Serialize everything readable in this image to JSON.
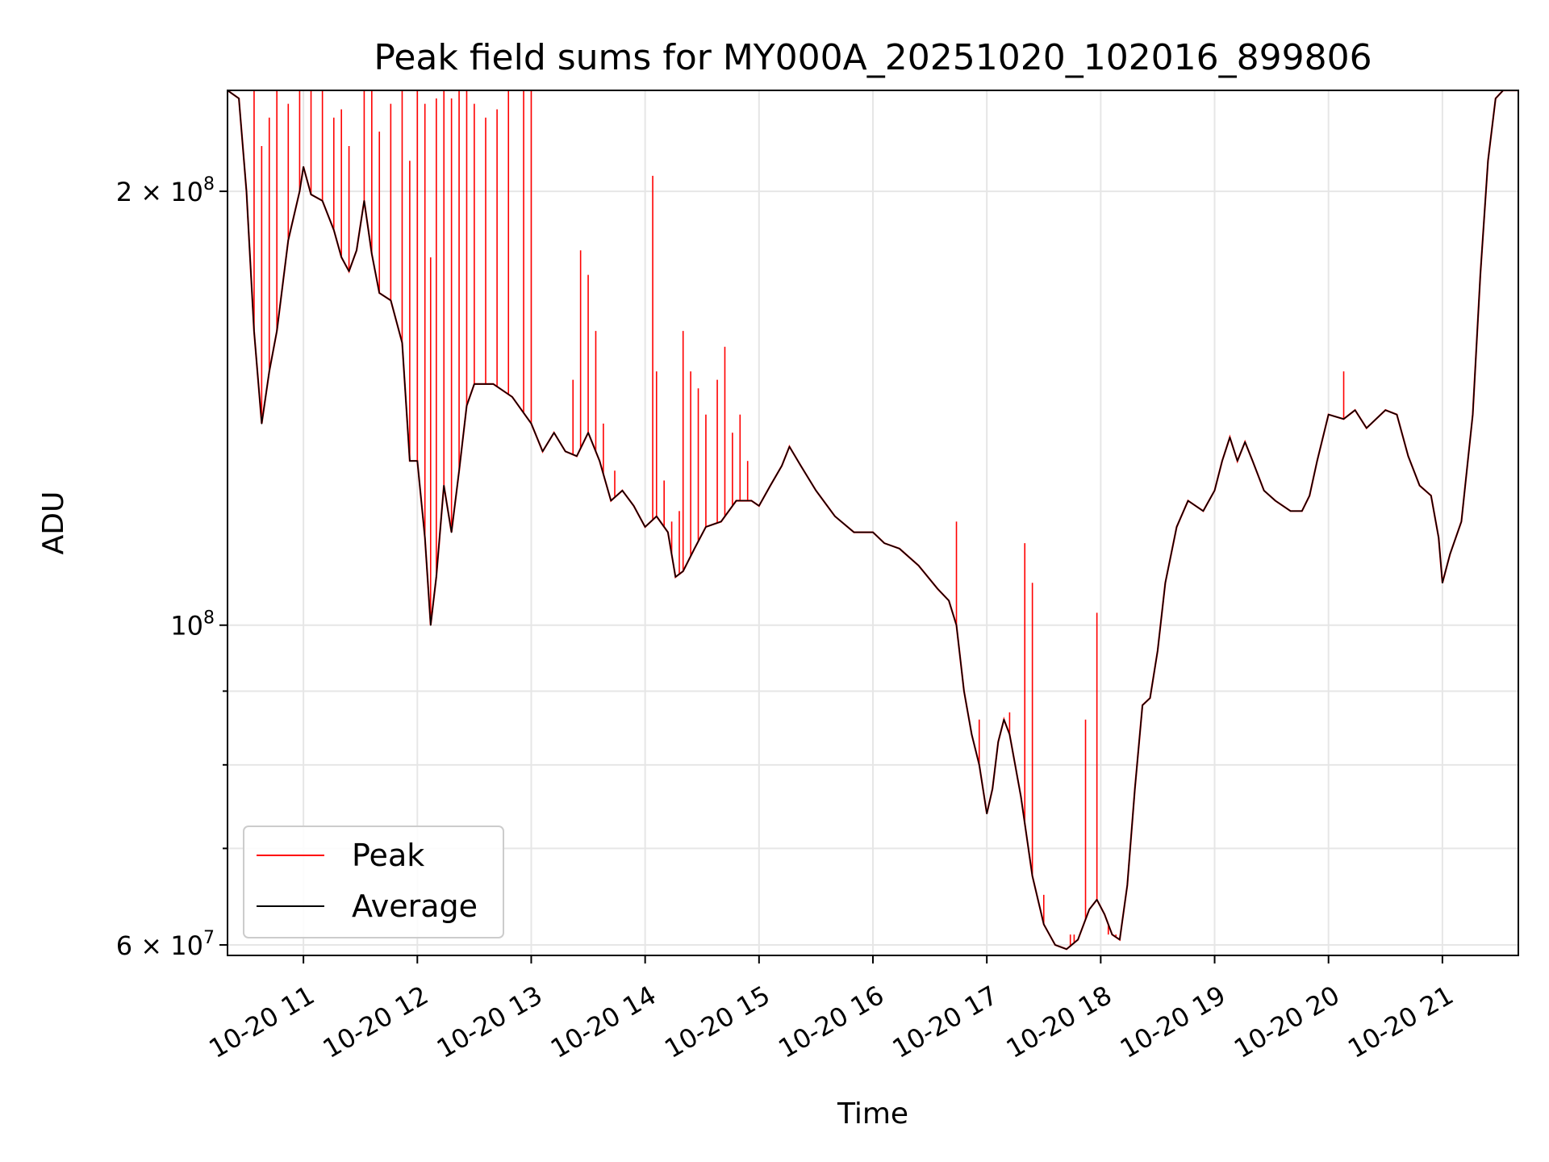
{
  "chart_data": {
    "type": "line",
    "title": "Peak field sums for MY000A_20251020_102016_899806",
    "xlabel": "Time",
    "ylabel": "ADU",
    "y_scale": "log",
    "ylim": [
      59000000,
      235000000
    ],
    "xlim": [
      "2025-10-20 10:20",
      "2025-10-20 21:40"
    ],
    "grid": true,
    "legend_position": "lower-left",
    "x_ticks": [
      {
        "t": "2025-10-20 11:00",
        "label": "10-20 11"
      },
      {
        "t": "2025-10-20 12:00",
        "label": "10-20 12"
      },
      {
        "t": "2025-10-20 13:00",
        "label": "10-20 13"
      },
      {
        "t": "2025-10-20 14:00",
        "label": "10-20 14"
      },
      {
        "t": "2025-10-20 15:00",
        "label": "10-20 15"
      },
      {
        "t": "2025-10-20 16:00",
        "label": "10-20 16"
      },
      {
        "t": "2025-10-20 17:00",
        "label": "10-20 17"
      },
      {
        "t": "2025-10-20 18:00",
        "label": "10-20 18"
      },
      {
        "t": "2025-10-20 19:00",
        "label": "10-20 19"
      },
      {
        "t": "2025-10-20 20:00",
        "label": "10-20 20"
      },
      {
        "t": "2025-10-20 21:00",
        "label": "10-20 21"
      }
    ],
    "y_ticks": [
      {
        "value": 60000000,
        "base": "6 × 10",
        "exp": "7"
      },
      {
        "value": 100000000,
        "base": "10",
        "exp": "8"
      },
      {
        "value": 200000000,
        "base": "2 × 10",
        "exp": "8"
      }
    ],
    "y_minor_ticks": [
      70000000,
      80000000,
      90000000
    ],
    "series": [
      {
        "name": "Average",
        "color": "#000000",
        "points": [
          [
            "2025-10-20 10:20",
            235000000
          ],
          [
            "2025-10-20 10:26",
            232000000
          ],
          [
            "2025-10-20 10:30",
            200000000
          ],
          [
            "2025-10-20 10:34",
            160000000
          ],
          [
            "2025-10-20 10:38",
            138000000
          ],
          [
            "2025-10-20 10:42",
            150000000
          ],
          [
            "2025-10-20 10:46",
            160000000
          ],
          [
            "2025-10-20 10:52",
            185000000
          ],
          [
            "2025-10-20 10:58",
            200000000
          ],
          [
            "2025-10-20 11:00",
            208000000
          ],
          [
            "2025-10-20 11:04",
            199000000
          ],
          [
            "2025-10-20 11:10",
            197000000
          ],
          [
            "2025-10-20 11:16",
            188000000
          ],
          [
            "2025-10-20 11:20",
            180000000
          ],
          [
            "2025-10-20 11:24",
            176000000
          ],
          [
            "2025-10-20 11:28",
            182000000
          ],
          [
            "2025-10-20 11:32",
            197000000
          ],
          [
            "2025-10-20 11:36",
            181000000
          ],
          [
            "2025-10-20 11:40",
            170000000
          ],
          [
            "2025-10-20 11:46",
            168000000
          ],
          [
            "2025-10-20 11:52",
            157000000
          ],
          [
            "2025-10-20 11:56",
            130000000
          ],
          [
            "2025-10-20 12:00",
            130000000
          ],
          [
            "2025-10-20 12:04",
            115000000
          ],
          [
            "2025-10-20 12:07",
            100000000
          ],
          [
            "2025-10-20 12:10",
            108000000
          ],
          [
            "2025-10-20 12:14",
            125000000
          ],
          [
            "2025-10-20 12:18",
            116000000
          ],
          [
            "2025-10-20 12:22",
            128000000
          ],
          [
            "2025-10-20 12:26",
            142000000
          ],
          [
            "2025-10-20 12:30",
            147000000
          ],
          [
            "2025-10-20 12:40",
            147000000
          ],
          [
            "2025-10-20 12:50",
            144000000
          ],
          [
            "2025-10-20 13:00",
            138000000
          ],
          [
            "2025-10-20 13:06",
            132000000
          ],
          [
            "2025-10-20 13:12",
            136000000
          ],
          [
            "2025-10-20 13:18",
            132000000
          ],
          [
            "2025-10-20 13:24",
            131000000
          ],
          [
            "2025-10-20 13:30",
            136000000
          ],
          [
            "2025-10-20 13:36",
            130000000
          ],
          [
            "2025-10-20 13:42",
            122000000
          ],
          [
            "2025-10-20 13:48",
            124000000
          ],
          [
            "2025-10-20 13:54",
            121000000
          ],
          [
            "2025-10-20 14:00",
            117000000
          ],
          [
            "2025-10-20 14:06",
            119000000
          ],
          [
            "2025-10-20 14:12",
            116000000
          ],
          [
            "2025-10-20 14:16",
            108000000
          ],
          [
            "2025-10-20 14:20",
            109000000
          ],
          [
            "2025-10-20 14:26",
            113000000
          ],
          [
            "2025-10-20 14:32",
            117000000
          ],
          [
            "2025-10-20 14:40",
            118000000
          ],
          [
            "2025-10-20 14:48",
            122000000
          ],
          [
            "2025-10-20 14:56",
            122000000
          ],
          [
            "2025-10-20 15:00",
            121000000
          ],
          [
            "2025-10-20 15:06",
            125000000
          ],
          [
            "2025-10-20 15:12",
            129000000
          ],
          [
            "2025-10-20 15:16",
            133000000
          ],
          [
            "2025-10-20 15:22",
            129000000
          ],
          [
            "2025-10-20 15:30",
            124000000
          ],
          [
            "2025-10-20 15:40",
            119000000
          ],
          [
            "2025-10-20 15:50",
            116000000
          ],
          [
            "2025-10-20 16:00",
            116000000
          ],
          [
            "2025-10-20 16:06",
            114000000
          ],
          [
            "2025-10-20 16:14",
            113000000
          ],
          [
            "2025-10-20 16:24",
            110000000
          ],
          [
            "2025-10-20 16:34",
            106000000
          ],
          [
            "2025-10-20 16:40",
            104000000
          ],
          [
            "2025-10-20 16:44",
            100000000
          ],
          [
            "2025-10-20 16:48",
            90000000
          ],
          [
            "2025-10-20 16:52",
            84000000
          ],
          [
            "2025-10-20 16:56",
            80000000
          ],
          [
            "2025-10-20 17:00",
            74000000
          ],
          [
            "2025-10-20 17:03",
            77000000
          ],
          [
            "2025-10-20 17:06",
            83000000
          ],
          [
            "2025-10-20 17:09",
            86000000
          ],
          [
            "2025-10-20 17:12",
            84000000
          ],
          [
            "2025-10-20 17:18",
            76000000
          ],
          [
            "2025-10-20 17:24",
            67000000
          ],
          [
            "2025-10-20 17:30",
            62000000
          ],
          [
            "2025-10-20 17:36",
            60000000
          ],
          [
            "2025-10-20 17:42",
            59600000
          ],
          [
            "2025-10-20 17:48",
            60500000
          ],
          [
            "2025-10-20 17:54",
            63500000
          ],
          [
            "2025-10-20 17:58",
            64500000
          ],
          [
            "2025-10-20 18:02",
            63000000
          ],
          [
            "2025-10-20 18:06",
            61000000
          ],
          [
            "2025-10-20 18:10",
            60500000
          ],
          [
            "2025-10-20 18:14",
            66000000
          ],
          [
            "2025-10-20 18:18",
            77000000
          ],
          [
            "2025-10-20 18:22",
            88000000
          ],
          [
            "2025-10-20 18:26",
            89000000
          ],
          [
            "2025-10-20 18:30",
            96000000
          ],
          [
            "2025-10-20 18:34",
            107000000
          ],
          [
            "2025-10-20 18:40",
            117000000
          ],
          [
            "2025-10-20 18:46",
            122000000
          ],
          [
            "2025-10-20 18:54",
            120000000
          ],
          [
            "2025-10-20 19:00",
            124000000
          ],
          [
            "2025-10-20 19:04",
            130000000
          ],
          [
            "2025-10-20 19:08",
            135000000
          ],
          [
            "2025-10-20 19:12",
            130000000
          ],
          [
            "2025-10-20 19:16",
            134000000
          ],
          [
            "2025-10-20 19:20",
            130000000
          ],
          [
            "2025-10-20 19:26",
            124000000
          ],
          [
            "2025-10-20 19:32",
            122000000
          ],
          [
            "2025-10-20 19:40",
            120000000
          ],
          [
            "2025-10-20 19:46",
            120000000
          ],
          [
            "2025-10-20 19:50",
            123000000
          ],
          [
            "2025-10-20 19:54",
            130000000
          ],
          [
            "2025-10-20 20:00",
            140000000
          ],
          [
            "2025-10-20 20:08",
            139000000
          ],
          [
            "2025-10-20 20:14",
            141000000
          ],
          [
            "2025-10-20 20:20",
            137000000
          ],
          [
            "2025-10-20 20:30",
            141000000
          ],
          [
            "2025-10-20 20:36",
            140000000
          ],
          [
            "2025-10-20 20:42",
            131000000
          ],
          [
            "2025-10-20 20:48",
            125000000
          ],
          [
            "2025-10-20 20:54",
            123000000
          ],
          [
            "2025-10-20 20:58",
            115000000
          ],
          [
            "2025-10-20 21:00",
            107000000
          ],
          [
            "2025-10-20 21:04",
            112000000
          ],
          [
            "2025-10-20 21:10",
            118000000
          ],
          [
            "2025-10-20 21:16",
            140000000
          ],
          [
            "2025-10-20 21:20",
            175000000
          ],
          [
            "2025-10-20 21:24",
            210000000
          ],
          [
            "2025-10-20 21:28",
            232000000
          ],
          [
            "2025-10-20 21:32",
            235000000
          ],
          [
            "2025-10-20 21:40",
            235000000
          ]
        ]
      },
      {
        "name": "Peak",
        "color": "#ff0000",
        "spikes": [
          [
            "2025-10-20 10:34",
            235000000
          ],
          [
            "2025-10-20 10:38",
            215000000
          ],
          [
            "2025-10-20 10:42",
            225000000
          ],
          [
            "2025-10-20 10:46",
            235000000
          ],
          [
            "2025-10-20 10:52",
            230000000
          ],
          [
            "2025-10-20 10:58",
            235000000
          ],
          [
            "2025-10-20 11:04",
            235000000
          ],
          [
            "2025-10-20 11:10",
            235000000
          ],
          [
            "2025-10-20 11:16",
            225000000
          ],
          [
            "2025-10-20 11:20",
            228000000
          ],
          [
            "2025-10-20 11:24",
            215000000
          ],
          [
            "2025-10-20 11:32",
            235000000
          ],
          [
            "2025-10-20 11:36",
            235000000
          ],
          [
            "2025-10-20 11:40",
            220000000
          ],
          [
            "2025-10-20 11:46",
            230000000
          ],
          [
            "2025-10-20 11:52",
            235000000
          ],
          [
            "2025-10-20 11:56",
            210000000
          ],
          [
            "2025-10-20 12:00",
            235000000
          ],
          [
            "2025-10-20 12:04",
            230000000
          ],
          [
            "2025-10-20 12:07",
            180000000
          ],
          [
            "2025-10-20 12:10",
            232000000
          ],
          [
            "2025-10-20 12:14",
            235000000
          ],
          [
            "2025-10-20 12:18",
            232000000
          ],
          [
            "2025-10-20 12:22",
            235000000
          ],
          [
            "2025-10-20 12:26",
            235000000
          ],
          [
            "2025-10-20 12:30",
            230000000
          ],
          [
            "2025-10-20 12:36",
            225000000
          ],
          [
            "2025-10-20 12:42",
            228000000
          ],
          [
            "2025-10-20 12:48",
            235000000
          ],
          [
            "2025-10-20 12:56",
            235000000
          ],
          [
            "2025-10-20 13:00",
            235000000
          ],
          [
            "2025-10-20 13:22",
            148000000
          ],
          [
            "2025-10-20 13:26",
            182000000
          ],
          [
            "2025-10-20 13:30",
            175000000
          ],
          [
            "2025-10-20 13:34",
            160000000
          ],
          [
            "2025-10-20 13:38",
            138000000
          ],
          [
            "2025-10-20 13:44",
            128000000
          ],
          [
            "2025-10-20 14:04",
            205000000
          ],
          [
            "2025-10-20 14:06",
            150000000
          ],
          [
            "2025-10-20 14:10",
            126000000
          ],
          [
            "2025-10-20 14:14",
            118000000
          ],
          [
            "2025-10-20 14:18",
            120000000
          ],
          [
            "2025-10-20 14:20",
            160000000
          ],
          [
            "2025-10-20 14:24",
            150000000
          ],
          [
            "2025-10-20 14:28",
            146000000
          ],
          [
            "2025-10-20 14:32",
            140000000
          ],
          [
            "2025-10-20 14:38",
            148000000
          ],
          [
            "2025-10-20 14:42",
            156000000
          ],
          [
            "2025-10-20 14:46",
            136000000
          ],
          [
            "2025-10-20 14:50",
            140000000
          ],
          [
            "2025-10-20 14:54",
            130000000
          ],
          [
            "2025-10-20 16:44",
            118000000
          ],
          [
            "2025-10-20 16:56",
            86000000
          ],
          [
            "2025-10-20 17:12",
            87000000
          ],
          [
            "2025-10-20 17:20",
            114000000
          ],
          [
            "2025-10-20 17:24",
            107000000
          ],
          [
            "2025-10-20 17:30",
            65000000
          ],
          [
            "2025-10-20 17:44",
            61000000
          ],
          [
            "2025-10-20 17:46",
            61000000
          ],
          [
            "2025-10-20 17:52",
            86000000
          ],
          [
            "2025-10-20 17:58",
            102000000
          ],
          [
            "2025-10-20 18:04",
            61000000
          ],
          [
            "2025-10-20 18:08",
            61000000
          ],
          [
            "2025-10-20 20:08",
            150000000
          ]
        ]
      }
    ]
  }
}
